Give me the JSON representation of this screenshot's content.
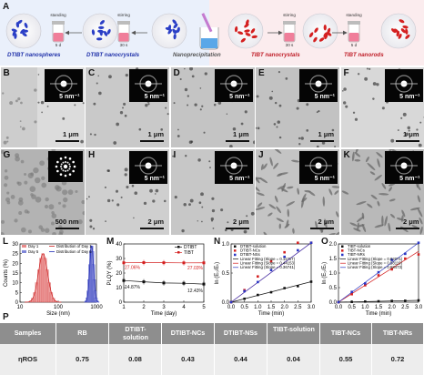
{
  "panelA": {
    "letter": "A",
    "captions": [
      "DTIBT nanospheres",
      "DTIBT nanocrystals",
      "Nanoprecipitation",
      "TIBT nanocrystals",
      "TIBT nanorods"
    ],
    "steps": [
      "standing",
      "5 d",
      "stirring",
      "30 s",
      "stirring",
      "30 s",
      "standing",
      "5 d"
    ]
  },
  "tiles": [
    {
      "letter": "B",
      "inset": "5 nm⁻¹",
      "scale": "1 μm"
    },
    {
      "letter": "C",
      "inset": "5 nm⁻¹",
      "scale": "1 μm"
    },
    {
      "letter": "D",
      "inset": "5 nm⁻¹",
      "scale": "1 μm"
    },
    {
      "letter": "E",
      "inset": "5 nm⁻¹",
      "scale": "1 μm"
    },
    {
      "letter": "F",
      "inset": "5 nm⁻¹",
      "scale": "1 μm"
    },
    {
      "letter": "G",
      "inset": "",
      "scale": "500 nm"
    },
    {
      "letter": "H",
      "inset": "5 nm⁻¹",
      "scale": "2 μm"
    },
    {
      "letter": "I",
      "inset": "5 nm⁻¹",
      "scale": "2 μm"
    },
    {
      "letter": "J",
      "inset": "5 nm⁻¹",
      "scale": "2 μm"
    },
    {
      "letter": "K",
      "inset": "5 nm⁻¹",
      "scale": "2 μm"
    }
  ],
  "chart_data": [
    {
      "panel": "L",
      "type": "bar",
      "xlabel": "Size (nm)",
      "ylabel": "Counts (%)",
      "yticks": [
        "0",
        "5",
        "10",
        "15",
        "20",
        "25",
        "30"
      ],
      "xticks": [
        "10",
        "100",
        "1000"
      ],
      "xscale": "log",
      "ylim": [
        0,
        30
      ],
      "legend": [
        "Day 1",
        "Day 5",
        "Distribution of Day 1",
        "Distribution of Day 5"
      ],
      "legend_position": "top",
      "series": [
        {
          "name": "Day 1",
          "center_nm": 40,
          "peak": 25
        },
        {
          "name": "Day 5",
          "center_nm": 750,
          "peak": 29
        }
      ],
      "colors": {
        "day1": "#e88a8a",
        "day5": "#7f86d8",
        "fit1": "#cc1f1f",
        "fit5": "#1f2bb5"
      }
    },
    {
      "panel": "M",
      "type": "line",
      "xlabel": "Time (day)",
      "ylabel": "PLQY (%)",
      "yticks": [
        "0",
        "10",
        "20",
        "30",
        "40"
      ],
      "xticks": [
        "1",
        "2",
        "3",
        "4",
        "5"
      ],
      "ylim": [
        0,
        40
      ],
      "legend": [
        "DTIBT",
        "TIBT"
      ],
      "legend_position": "top-right",
      "series": [
        {
          "name": "DTIBT",
          "x": [
            1,
            2,
            3,
            4,
            5
          ],
          "y": [
            14.87,
            14.0,
            13.2,
            13.0,
            12.43
          ],
          "color": "#111111"
        },
        {
          "name": "TIBT",
          "x": [
            1,
            2,
            3,
            4,
            5
          ],
          "y": [
            27.06,
            27.2,
            27.1,
            27.0,
            27.03
          ],
          "color": "#d42020"
        }
      ],
      "annotations": [
        "27.06%",
        "27.03%",
        "14.87%",
        "12.43%"
      ]
    },
    {
      "panel": "N",
      "type": "scatter",
      "xlabel": "Time (min)",
      "ylabel": "ln (E₀/Eₜ)",
      "yticks": [
        "0.0",
        "0.5",
        "1.0"
      ],
      "xticks": [
        "0.0",
        "0.5",
        "1.0",
        "1.5",
        "2.0",
        "2.5",
        "3.0"
      ],
      "ylim": [
        0,
        1.4
      ],
      "legend": [
        "DTIBT-solution",
        "DTIBT-NCs",
        "DTIBT-NSs",
        "Linear Fitting (Slope = 0.11717)",
        "Linear Fitting (Slope = 0.44153)",
        "Linear Fitting (Slope = 0.36741)"
      ],
      "slopes": [
        0.11717,
        0.44153,
        0.36741
      ],
      "colors": [
        "#111111",
        "#d42020",
        "#2a36c4"
      ]
    },
    {
      "panel": "O",
      "type": "scatter",
      "xlabel": "Time (min)",
      "ylabel": "ln (E₀/Eₜ)",
      "yticks": [
        "0.0",
        "0.5",
        "1.0",
        "1.5",
        "2.0"
      ],
      "xticks": [
        "0.0",
        "0.5",
        "1.0",
        "1.5",
        "2.0",
        "2.5",
        "3.0"
      ],
      "ylim": [
        0,
        2.1
      ],
      "legend": [
        "TIBT-solution",
        "TIBT-NCs",
        "TIBT-NRs",
        "Linear Fitting (Slope = 0.02071)",
        "Linear Fitting (Slope = 0.58119)",
        "Linear Fitting (Slope = 0.68473)"
      ],
      "slopes": [
        0.02071,
        0.58119,
        0.68473
      ],
      "colors": [
        "#111111",
        "#d42020",
        "#2a36c4"
      ]
    }
  ],
  "table": {
    "letter": "P",
    "headers": [
      "Samples",
      "RB",
      "DTIBT-solution",
      "DTIBT-NCs",
      "DTIBT-NSs",
      "TIBT-solution",
      "TIBT-NCs",
      "TIBT-NRs"
    ],
    "row_label": "ηROS",
    "values": [
      "0.75",
      "0.08",
      "0.43",
      "0.44",
      "0.04",
      "0.55",
      "0.72"
    ]
  },
  "colors": {
    "blue_bg": "#eaf0fb",
    "pink_bg": "#fbecee",
    "table_header": "#8e8e8e",
    "table_row": "#ededed"
  }
}
